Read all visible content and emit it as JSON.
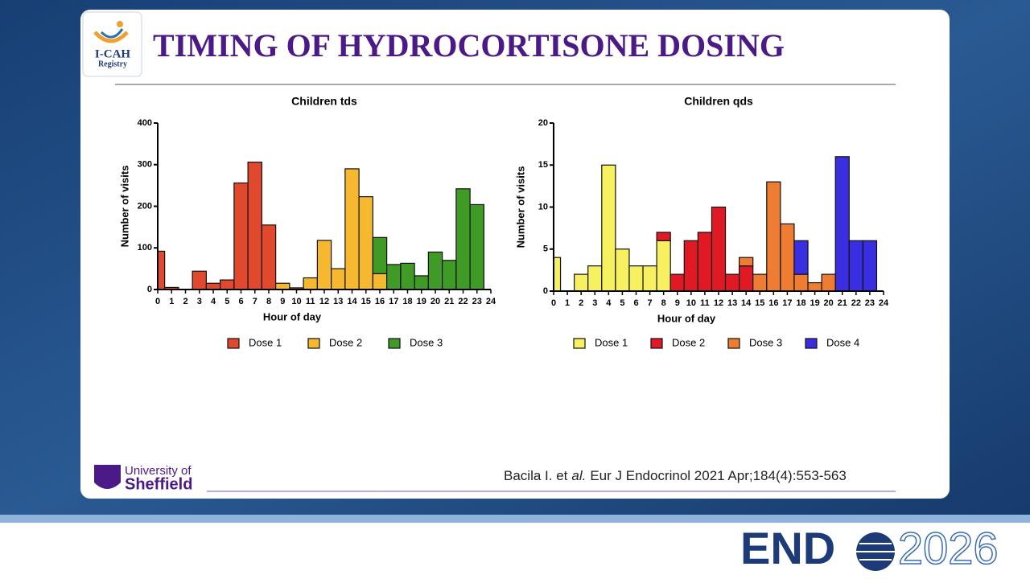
{
  "slide": {
    "title": "TIMING OF HYDROCORTISONE DOSING",
    "logo": {
      "name": "I-CAH",
      "subtitle": "Registry"
    },
    "university": {
      "line1": "University of",
      "line2": "Sheffield"
    },
    "citation": [
      "Bacila I. et",
      "al.",
      "Eur J Endocrinol 2021 Apr;184(4):553-563"
    ],
    "event": {
      "name": "END",
      "year": "2026"
    }
  },
  "chart_data": [
    {
      "type": "bar",
      "stacked": true,
      "title": "Children tds",
      "x_label": "Hour of day",
      "y_label": "Number of visits",
      "x": [
        0,
        1,
        2,
        3,
        4,
        5,
        6,
        7,
        8,
        9,
        10,
        11,
        12,
        13,
        14,
        15,
        16,
        17,
        18,
        19,
        20,
        21,
        22,
        23
      ],
      "series": [
        {
          "name": "Dose 1",
          "color": "#e0492e",
          "values": [
            92,
            5,
            null,
            44,
            15,
            23,
            256,
            306,
            155,
            null,
            4,
            null,
            null,
            null,
            null,
            null,
            null,
            null,
            null,
            null,
            null,
            null,
            null,
            null
          ]
        },
        {
          "name": "Dose 2",
          "color": "#f5b82e",
          "values": [
            null,
            null,
            null,
            null,
            null,
            null,
            null,
            null,
            null,
            15,
            null,
            28,
            118,
            50,
            290,
            223,
            38,
            null,
            null,
            null,
            null,
            null,
            null,
            null
          ]
        },
        {
          "name": "Dose 3",
          "color": "#3f9a26",
          "values": [
            null,
            null,
            null,
            null,
            null,
            null,
            null,
            null,
            null,
            null,
            null,
            null,
            null,
            null,
            null,
            null,
            87,
            60,
            63,
            33,
            90,
            70,
            242,
            204
          ]
        }
      ],
      "xlim": [
        0,
        24
      ],
      "xticks": [
        0,
        1,
        2,
        3,
        4,
        5,
        6,
        7,
        8,
        9,
        10,
        11,
        12,
        13,
        14,
        15,
        16,
        17,
        18,
        19,
        20,
        21,
        22,
        23,
        24
      ],
      "ylim": [
        0,
        400
      ],
      "yticks": [
        0,
        100,
        200,
        300,
        400
      ],
      "legend": "bottom"
    },
    {
      "type": "bar",
      "stacked": true,
      "title": "Children qds",
      "x_label": "Hour of day",
      "y_label": "Number of visits",
      "x": [
        0,
        1,
        2,
        3,
        4,
        5,
        6,
        7,
        8,
        9,
        10,
        11,
        12,
        13,
        14,
        15,
        16,
        17,
        18,
        19,
        20,
        21,
        22,
        23
      ],
      "series": [
        {
          "name": "Dose 1",
          "color": "#f7f060",
          "values": [
            4,
            null,
            2,
            3,
            15,
            5,
            3,
            3,
            6,
            null,
            null,
            null,
            null,
            null,
            null,
            null,
            null,
            null,
            null,
            null,
            null,
            null,
            null,
            null
          ]
        },
        {
          "name": "Dose 2",
          "color": "#e01a24",
          "values": [
            null,
            null,
            null,
            null,
            null,
            null,
            null,
            null,
            1,
            2,
            6,
            7,
            10,
            2,
            3,
            null,
            null,
            null,
            null,
            null,
            null,
            null,
            null,
            null
          ]
        },
        {
          "name": "Dose 3",
          "color": "#ee7c32",
          "values": [
            null,
            null,
            null,
            null,
            null,
            null,
            null,
            null,
            null,
            null,
            null,
            null,
            null,
            null,
            1,
            2,
            13,
            8,
            2,
            1,
            2,
            null,
            null,
            null
          ]
        },
        {
          "name": "Dose 4",
          "color": "#3a2fe0",
          "values": [
            null,
            null,
            null,
            null,
            null,
            null,
            null,
            null,
            null,
            null,
            null,
            null,
            null,
            null,
            null,
            null,
            null,
            null,
            4,
            null,
            null,
            16,
            6,
            6
          ]
        }
      ],
      "xlim": [
        0,
        24
      ],
      "xticks": [
        0,
        1,
        2,
        3,
        4,
        5,
        6,
        7,
        8,
        9,
        10,
        11,
        12,
        13,
        14,
        15,
        16,
        17,
        18,
        19,
        20,
        21,
        22,
        23,
        24
      ],
      "ylim": [
        0,
        20
      ],
      "yticks": [
        0,
        5,
        10,
        15,
        20
      ],
      "legend": "bottom"
    }
  ]
}
